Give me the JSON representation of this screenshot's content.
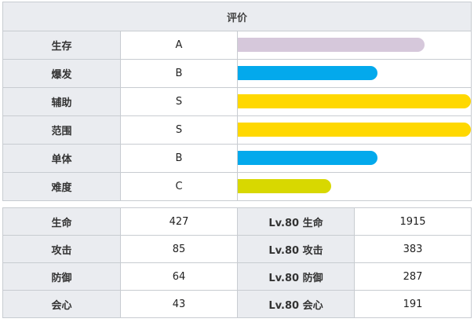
{
  "rating": {
    "header": "评价",
    "rows": [
      {
        "label": "生存",
        "grade": "A",
        "level": 0.8,
        "color": "#d6c8db"
      },
      {
        "label": "爆发",
        "grade": "B",
        "level": 0.6,
        "color": "#03a9ec"
      },
      {
        "label": "辅助",
        "grade": "S",
        "level": 1.0,
        "color": "#ffd800"
      },
      {
        "label": "范围",
        "grade": "S",
        "level": 1.0,
        "color": "#ffd800"
      },
      {
        "label": "单体",
        "grade": "B",
        "level": 0.6,
        "color": "#03a9ec"
      },
      {
        "label": "难度",
        "grade": "C",
        "level": 0.4,
        "color": "#d8d800"
      }
    ]
  },
  "stats": {
    "rows": [
      {
        "label": "生命",
        "value": "427",
        "lv_label": "Lv.80 生命",
        "lv_value": "1915"
      },
      {
        "label": "攻击",
        "value": "85",
        "lv_label": "Lv.80 攻击",
        "lv_value": "383"
      },
      {
        "label": "防御",
        "value": "64",
        "lv_label": "Lv.80 防御",
        "lv_value": "287"
      },
      {
        "label": "会心",
        "value": "43",
        "lv_label": "Lv.80 会心",
        "lv_value": "191"
      }
    ]
  }
}
